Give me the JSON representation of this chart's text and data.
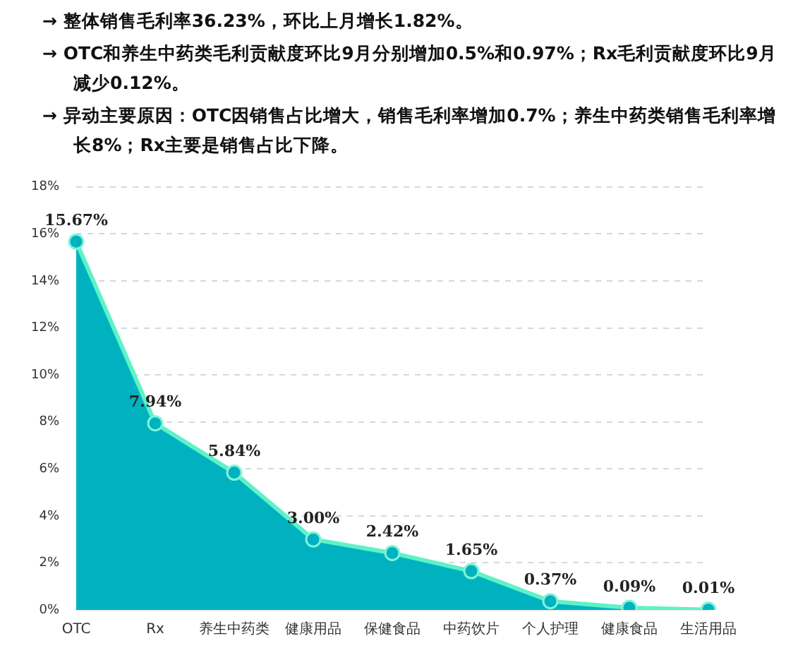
{
  "chart_data": {
    "type": "area",
    "annotations": [
      "→ 整体销售毛利率36.23%，环比上月增长1.82%。",
      "→ OTC和养生中药类毛利贡献度环比9月分别增加0.5%和0.97%；Rx毛利贡献度环比9月减少0.12%。",
      "→ 异动主要原因：OTC因销售占比增大，销售毛利率增加0.7%；养生中药类销售毛利率增长8%；Rx主要是销售占比下降。"
    ],
    "categories": [
      "OTC",
      "Rx",
      "养生中药类",
      "健康用品",
      "保健食品",
      "中药饮片",
      "个人护理",
      "健康食品",
      "生活用品"
    ],
    "series": [
      {
        "color": "#00b2c0",
        "values": [
          15.67,
          7.94,
          5.84,
          3.0,
          2.42,
          1.65,
          0.37,
          0.09,
          0.01
        ],
        "value_labels": [
          "15.67%",
          "7.94%",
          "5.84%",
          "3.00%",
          "2.42%",
          "1.65%",
          "0.37%",
          "0.09%",
          "0.01%"
        ]
      }
    ],
    "ylim": [
      0,
      18
    ],
    "yticks": [
      {
        "value": 0,
        "label": "0%"
      },
      {
        "value": 2,
        "label": "2%"
      },
      {
        "value": 4,
        "label": "4%"
      },
      {
        "value": 6,
        "label": "6%"
      },
      {
        "value": 8,
        "label": "8%"
      },
      {
        "value": 10,
        "label": "10%"
      },
      {
        "value": 12,
        "label": "12%"
      },
      {
        "value": 14,
        "label": "14%"
      },
      {
        "value": 16,
        "label": "16%"
      },
      {
        "value": 18,
        "label": "18%"
      }
    ],
    "grid": "y",
    "marker": "circle",
    "legend": false
  }
}
